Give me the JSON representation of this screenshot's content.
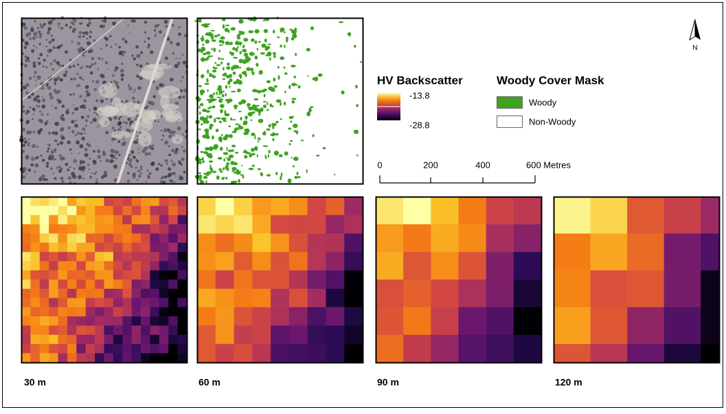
{
  "legend": {
    "backscatter": {
      "title": "HV Backscatter",
      "max": "-13.8",
      "min": "-28.8"
    },
    "woody": {
      "title": "Woody Cover Mask",
      "items": [
        "Woody",
        "Non-Woody"
      ]
    }
  },
  "scale_bar": {
    "labels": [
      "0",
      "200",
      "400",
      "600 Metres"
    ]
  },
  "north_arrow": "N",
  "panels": [
    "30 m",
    "60 m",
    "90 m",
    "120 m"
  ]
}
